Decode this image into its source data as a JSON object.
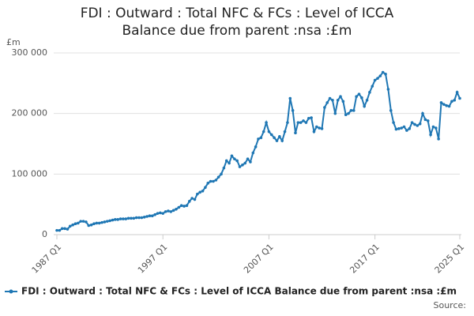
{
  "chart_data": {
    "type": "line",
    "title": "FDI : Outward : Total NFC & FCs : Level of ICCA Balance due from parent :nsa :£m",
    "y_label": "£m",
    "source": "Source:",
    "categories": [
      "1987 Q1",
      null,
      null,
      null,
      null,
      null,
      null,
      null,
      null,
      null,
      null,
      null,
      null,
      null,
      null,
      null,
      null,
      null,
      null,
      null,
      null,
      null,
      null,
      null,
      null,
      null,
      null,
      null,
      null,
      null,
      null,
      null,
      null,
      null,
      null,
      null,
      null,
      null,
      null,
      null,
      "1997 Q1",
      null,
      null,
      null,
      null,
      null,
      null,
      null,
      null,
      null,
      null,
      null,
      null,
      null,
      null,
      null,
      null,
      null,
      null,
      null,
      null,
      null,
      null,
      null,
      null,
      null,
      null,
      null,
      null,
      null,
      null,
      null,
      null,
      null,
      null,
      null,
      null,
      null,
      null,
      null,
      "2007 Q1",
      null,
      null,
      null,
      null,
      null,
      null,
      null,
      null,
      null,
      null,
      null,
      null,
      null,
      null,
      null,
      null,
      null,
      null,
      null,
      null,
      null,
      null,
      null,
      null,
      null,
      null,
      null,
      null,
      null,
      null,
      null,
      null,
      null,
      null,
      null,
      null,
      null,
      null,
      null,
      "2017 Q1",
      null,
      null,
      null,
      null,
      null,
      null,
      null,
      null,
      null,
      null,
      null,
      null,
      null,
      null,
      null,
      null,
      null,
      null,
      null,
      null,
      null,
      null,
      null,
      null,
      null,
      null,
      null,
      null,
      null,
      null,
      null,
      "2025 Q1"
    ],
    "series": [
      {
        "name": "FDI : Outward : Total NFC & FCs : Level of ICCA Balance due from parent :nsa :£m",
        "color": "#1f77b4",
        "values": [
          7000,
          7000,
          10000,
          10000,
          9000,
          14000,
          16000,
          18000,
          19000,
          22000,
          22000,
          21000,
          15000,
          16000,
          18000,
          19000,
          19000,
          20000,
          21000,
          22000,
          23000,
          24000,
          25000,
          25000,
          26000,
          26000,
          26000,
          27000,
          27000,
          27000,
          28000,
          28000,
          28000,
          29000,
          30000,
          31000,
          31000,
          33000,
          35000,
          36000,
          35000,
          38000,
          39000,
          38000,
          40000,
          42000,
          45000,
          48000,
          47000,
          48000,
          55000,
          60000,
          58000,
          67000,
          70000,
          72000,
          78000,
          85000,
          88000,
          88000,
          90000,
          95000,
          100000,
          110000,
          122000,
          118000,
          130000,
          125000,
          122000,
          112000,
          115000,
          118000,
          125000,
          120000,
          135000,
          145000,
          158000,
          160000,
          170000,
          185000,
          170000,
          165000,
          160000,
          155000,
          162000,
          155000,
          170000,
          185000,
          225000,
          205000,
          168000,
          185000,
          185000,
          188000,
          185000,
          192000,
          193000,
          170000,
          178000,
          176000,
          175000,
          210000,
          218000,
          225000,
          222000,
          200000,
          222000,
          228000,
          220000,
          198000,
          200000,
          205000,
          205000,
          228000,
          232000,
          226000,
          212000,
          222000,
          235000,
          245000,
          255000,
          258000,
          262000,
          268000,
          265000,
          240000,
          205000,
          185000,
          174000,
          175000,
          176000,
          178000,
          172000,
          175000,
          185000,
          182000,
          180000,
          183000,
          200000,
          190000,
          188000,
          165000,
          178000,
          176000,
          158000,
          218000,
          215000,
          213000,
          212000,
          220000,
          222000,
          235000,
          225000
        ]
      }
    ],
    "ylim": [
      0,
      300000
    ],
    "yticks": [
      0,
      {
        "value": 100000,
        "label": "100 000"
      },
      {
        "value": 200000,
        "label": "200 000"
      },
      {
        "value": 300000,
        "label": "300 000"
      }
    ],
    "grid": true
  }
}
